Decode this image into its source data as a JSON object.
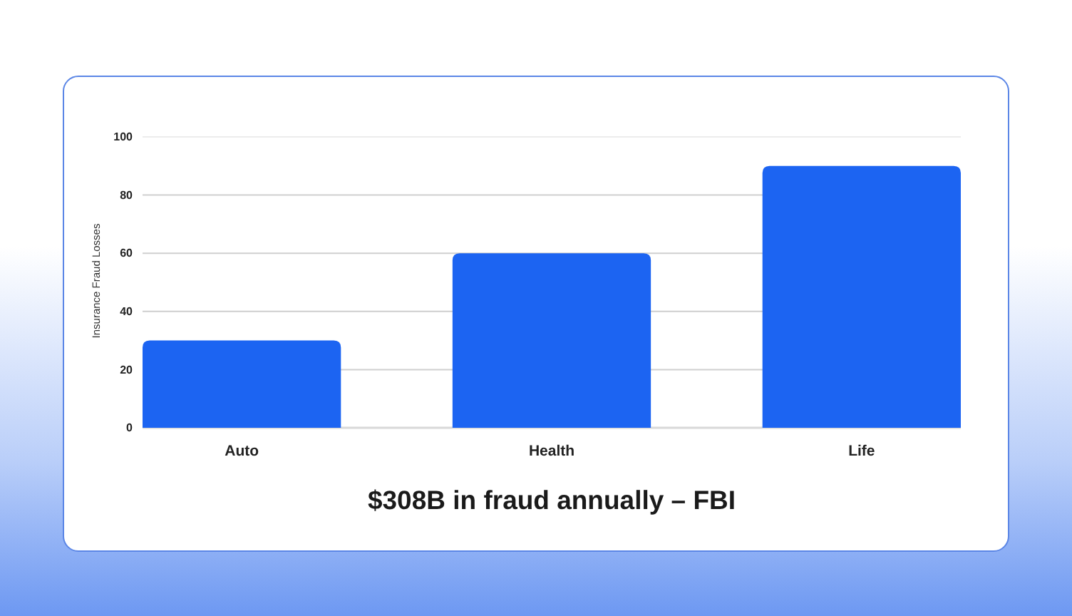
{
  "chart_data": {
    "type": "bar",
    "title": "$308B in fraud annually – FBI",
    "ylabel": "Insurance Fraud Losses",
    "categories": [
      "Auto",
      "Health",
      "Life"
    ],
    "values": [
      30,
      60,
      90
    ],
    "color": "#1c64f2",
    "ylim": [
      0,
      100
    ],
    "yticks": [
      0,
      20,
      40,
      60,
      80,
      100
    ],
    "grid": "y"
  }
}
